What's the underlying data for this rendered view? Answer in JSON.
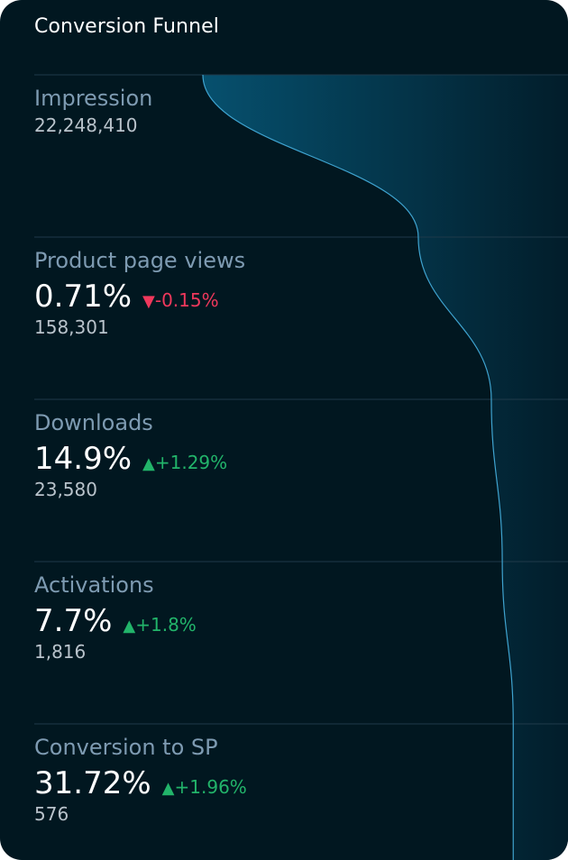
{
  "title": "Conversion Funnel",
  "colors": {
    "background": "#011720",
    "divider": "#1f3a4a",
    "funnel_line": "#3fa3cf",
    "funnel_fill_dark": "#021d2a",
    "funnel_fill_light": "#06506e",
    "positive": "#22b46a",
    "negative": "#f0385c",
    "label": "#7e9bb2"
  },
  "stages": [
    {
      "label": "Impression",
      "rate": "",
      "change": "",
      "direction": "",
      "count": "22,248,410"
    },
    {
      "label": "Product page views",
      "rate": "0.71%",
      "change": "-0.15%",
      "direction": "down",
      "count": "158,301"
    },
    {
      "label": "Downloads",
      "rate": "14.9%",
      "change": "+1.29%",
      "direction": "up",
      "count": "23,580"
    },
    {
      "label": "Activations",
      "rate": "7.7%",
      "change": "+1.8%",
      "direction": "up",
      "count": "1,816"
    },
    {
      "label": "Conversion to SP",
      "rate": "31.72%",
      "change": "+1.96%",
      "direction": "up",
      "count": "576"
    }
  ],
  "chart_data": {
    "type": "area",
    "title": "Conversion Funnel",
    "categories": [
      "Impression",
      "Product page views",
      "Downloads",
      "Activations",
      "Conversion to SP"
    ],
    "values": [
      22248410,
      158301,
      23580,
      1816,
      576
    ],
    "conversion_rates": [
      null,
      0.71,
      14.9,
      7.7,
      31.72
    ],
    "changes": [
      null,
      -0.15,
      1.29,
      1.8,
      1.96
    ],
    "relative_width": [
      1.0,
      0.41,
      0.21,
      0.18,
      0.15
    ]
  }
}
